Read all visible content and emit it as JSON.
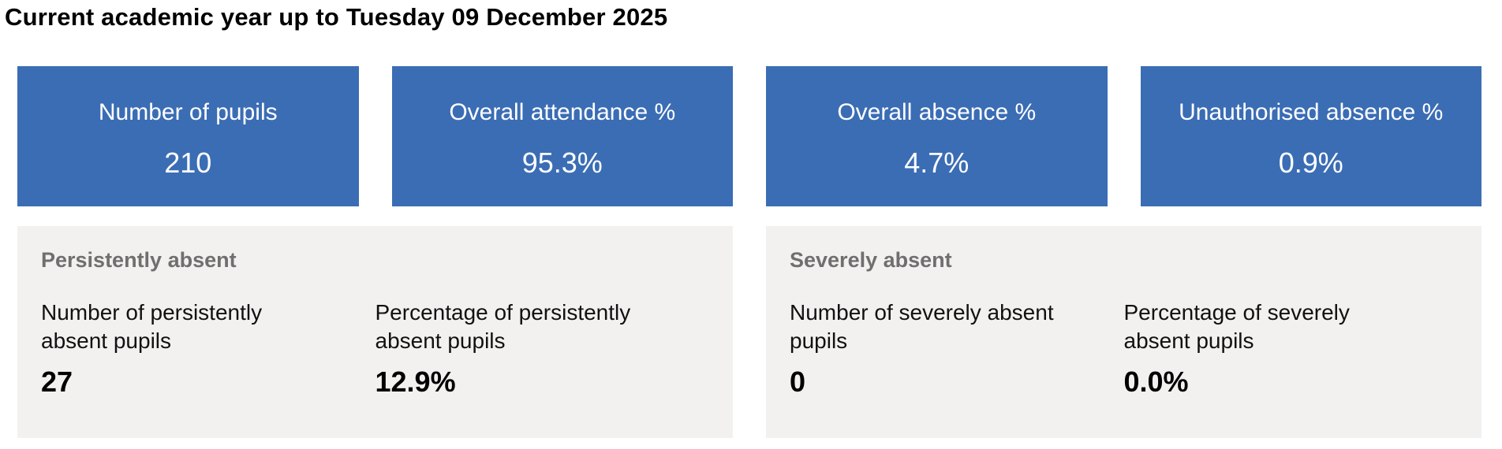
{
  "page": {
    "title": "Current academic year up to Tuesday 09 December 2025"
  },
  "colors": {
    "card_blue": "#3B6DB4",
    "card_text": "#FFFFFF",
    "panel_gray": "#F2F1EF",
    "panel_heading_gray": "#6F6F6F",
    "body_text": "#111111"
  },
  "summary_cards": [
    {
      "label": "Number of pupils",
      "value": "210"
    },
    {
      "label": "Overall attendance %",
      "value": "95.3%"
    },
    {
      "label": "Overall absence %",
      "value": "4.7%"
    },
    {
      "label": "Unauthorised absence %",
      "value": "0.9%"
    }
  ],
  "panels": [
    {
      "heading": "Persistently absent",
      "metrics": [
        {
          "label": "Number of persistently absent pupils",
          "value": "27"
        },
        {
          "label": "Percentage of persistently absent pupils",
          "value": "12.9%"
        }
      ]
    },
    {
      "heading": "Severely absent",
      "metrics": [
        {
          "label": "Number of severely absent pupils",
          "value": "0"
        },
        {
          "label": "Percentage of severely absent pupils",
          "value": "0.0%"
        }
      ]
    }
  ]
}
